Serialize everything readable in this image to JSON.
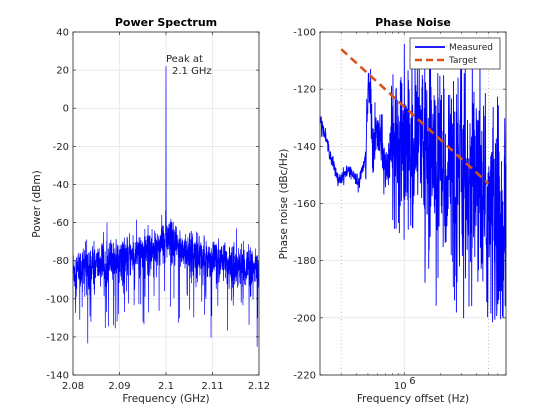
{
  "figure": {
    "background": "#ffffff",
    "axis_color": "#262626",
    "grid_color": "#dedede"
  },
  "chart_data": [
    {
      "type": "line",
      "title": "Power Spectrum",
      "xlabel": "Frequency (GHz)",
      "ylabel": "Power (dBm)",
      "xlim": [
        2.08,
        2.12
      ],
      "ylim": [
        -140,
        40
      ],
      "x_ticks": [
        2.08,
        2.09,
        2.1,
        2.11,
        2.12
      ],
      "x_tick_labels": [
        "2.08",
        "2.09",
        "2.1",
        "2.11",
        "2.12"
      ],
      "y_ticks": [
        -140,
        -120,
        -100,
        -80,
        -60,
        -40,
        -20,
        0,
        20,
        40
      ],
      "y_tick_labels": [
        "-140",
        "-120",
        "-100",
        "-80",
        "-60",
        "-40",
        "-20",
        "0",
        "20",
        "40"
      ],
      "grid": true,
      "series": [
        {
          "color": "#0000ff",
          "description": "noisy spectrum: mean floor rises from about -85 dBm at the edges to about -68 dBm near the carrier, spread roughly ±12 dB with dips to -130 dBm; spike to +22 dBm at 2.1 GHz",
          "carrier_x": 2.1,
          "carrier_y": 22,
          "floor_edge": -85,
          "floor_center": -68,
          "min_dip": -130
        }
      ],
      "annotation": {
        "text_line1": "Peak at",
        "text_line2": "2.1 GHz",
        "x": 2.1,
        "y": 22
      }
    },
    {
      "type": "line",
      "title": "Phase Noise",
      "xlabel": "Frequency offset (Hz)",
      "ylabel": "Phase noise (dBc/Hz)",
      "x_scale": "log",
      "xlim": [
        200000,
        7000000
      ],
      "ylim": [
        -220,
        -100
      ],
      "x_ticks": [
        1000000
      ],
      "x_tick_labels": [
        "10^6"
      ],
      "x_tick_base": "10",
      "x_tick_exp": "6",
      "y_ticks": [
        -220,
        -200,
        -180,
        -160,
        -140,
        -120,
        -100
      ],
      "y_tick_labels": [
        "-220",
        "-200",
        "-180",
        "-160",
        "-140",
        "-120",
        "-100"
      ],
      "grid": true,
      "vertical_markers": [
        300000,
        5000000
      ],
      "legend": {
        "position": "top-right",
        "entries": [
          "Measured",
          "Target"
        ]
      },
      "series": [
        {
          "name": "Measured",
          "color": "#0000ff",
          "description": "starts near -130 dBc/Hz at 2e5 Hz, dips to about -152 around 2.8e5 Hz, resonant peaks near -120 around 5e5 Hz, broad noisy band between -105 and -165 from 8e5 to 2e6 Hz, falling to about -160..-200 by 7e6 Hz"
        },
        {
          "name": "Target",
          "color": "#d95319",
          "dash": true,
          "x": [
            300000,
            5000000
          ],
          "y": [
            -106,
            -153
          ]
        }
      ]
    }
  ]
}
